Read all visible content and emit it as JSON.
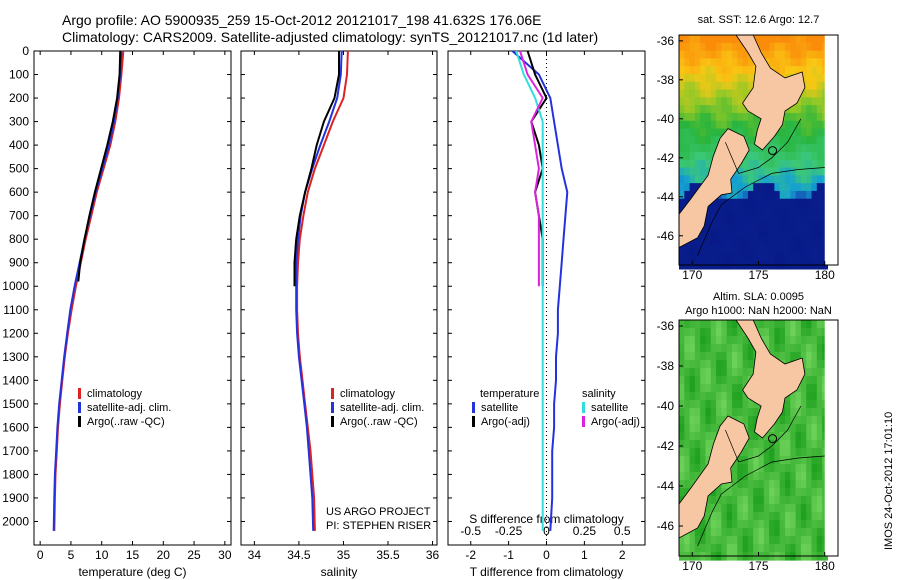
{
  "header": {
    "line1": "Argo profile: AO 5900935_259 15-Oct-2012 20121017_198 41.632S 176.06E",
    "line2": "Climatology: CARS2009. Satellite-adjusted climatology: synTS_20121017.nc (1d later)"
  },
  "colors": {
    "climatology": "#dd2222",
    "satellite": "#2233dd",
    "argo": "#000000",
    "sal_satellite": "#33dddd",
    "sal_argo": "#dd22dd",
    "land": "#f6c7a2"
  },
  "credits": {
    "line1": "US ARGO PROJECT",
    "line2": "PI: STEPHEN RISER"
  },
  "timestamp": "IMOS 24-Oct-2012 17:01:10",
  "chart_data": [
    {
      "type": "line",
      "id": "temperature",
      "xlabel": "temperature (deg C)",
      "ylabel": "",
      "xlim": [
        -1,
        31
      ],
      "ylim": [
        2100,
        0
      ],
      "xticks": [
        0,
        5,
        10,
        15,
        20,
        25,
        30
      ],
      "yticks": [
        0,
        100,
        200,
        300,
        400,
        500,
        600,
        700,
        800,
        900,
        1000,
        1100,
        1200,
        1300,
        1400,
        1500,
        1600,
        1700,
        1800,
        1900,
        2000
      ],
      "legend": {
        "placement": "lower-center",
        "entries": [
          "climatology",
          "satellite-adj. clim.",
          "Argo(..raw -QC)"
        ]
      },
      "series": [
        {
          "name": "climatology",
          "color": "#dd2222",
          "x": [
            13.5,
            13.2,
            12.8,
            12.2,
            11.4,
            10.3,
            9.2,
            8.3,
            7.4,
            6.6,
            5.8,
            5.1,
            4.5,
            4.0,
            3.6,
            3.2,
            2.9,
            2.7,
            2.5,
            2.4,
            2.3
          ],
          "y": [
            0,
            100,
            200,
            300,
            400,
            500,
            600,
            700,
            800,
            900,
            1000,
            1100,
            1200,
            1300,
            1400,
            1500,
            1600,
            1700,
            1800,
            1900,
            2040
          ]
        },
        {
          "name": "satellite-adj. clim.",
          "color": "#2233dd",
          "x": [
            13.2,
            13.0,
            12.6,
            12.0,
            11.2,
            10.1,
            9.0,
            8.1,
            7.2,
            6.4,
            5.6,
            4.9,
            4.4,
            3.9,
            3.5,
            3.1,
            2.8,
            2.6,
            2.4,
            2.3,
            2.2
          ],
          "y": [
            0,
            100,
            200,
            300,
            400,
            500,
            600,
            700,
            800,
            900,
            1000,
            1100,
            1200,
            1300,
            1400,
            1500,
            1600,
            1700,
            1800,
            1900,
            2040
          ]
        },
        {
          "name": "Argo(..raw -QC)",
          "color": "#000000",
          "x": [
            13.0,
            12.9,
            12.5,
            11.8,
            10.9,
            9.9,
            8.9,
            8.0,
            7.2,
            6.5,
            6.2
          ],
          "y": [
            0,
            100,
            200,
            300,
            400,
            500,
            600,
            700,
            800,
            900,
            980
          ]
        }
      ]
    },
    {
      "type": "line",
      "id": "salinity",
      "xlabel": "salinity",
      "ylabel": "",
      "xlim": [
        33.85,
        36.05
      ],
      "ylim": [
        2100,
        0
      ],
      "xticks": [
        34,
        34.5,
        35,
        35.5,
        36
      ],
      "legend": {
        "placement": "lower-center",
        "entries": [
          "climatology",
          "satellite-adj. clim.",
          "Argo(..raw -QC)"
        ]
      },
      "series": [
        {
          "name": "climatology",
          "color": "#dd2222",
          "x": [
            35.05,
            35.04,
            35.0,
            34.88,
            34.78,
            34.68,
            34.6,
            34.55,
            34.51,
            34.49,
            34.48,
            34.48,
            34.49,
            34.51,
            34.54,
            34.57,
            34.6,
            34.63,
            34.65,
            34.67,
            34.68
          ],
          "y": [
            0,
            100,
            200,
            300,
            400,
            500,
            600,
            700,
            800,
            900,
            1000,
            1100,
            1200,
            1300,
            1400,
            1500,
            1600,
            1700,
            1800,
            1900,
            2040
          ]
        },
        {
          "name": "satellite-adj. clim.",
          "color": "#2233dd",
          "x": [
            34.98,
            34.97,
            34.93,
            34.84,
            34.74,
            34.65,
            34.57,
            34.52,
            34.49,
            34.47,
            34.47,
            34.47,
            34.48,
            34.5,
            34.53,
            34.56,
            34.59,
            34.61,
            34.63,
            34.65,
            34.66
          ],
          "y": [
            0,
            100,
            200,
            300,
            400,
            500,
            600,
            700,
            800,
            900,
            1000,
            1100,
            1200,
            1300,
            1400,
            1500,
            1600,
            1700,
            1800,
            1900,
            2040
          ]
        },
        {
          "name": "Argo(..raw -QC)",
          "color": "#000000",
          "x": [
            34.95,
            34.95,
            34.9,
            34.78,
            34.7,
            34.64,
            34.57,
            34.51,
            34.47,
            34.45,
            34.45
          ],
          "y": [
            0,
            100,
            200,
            300,
            400,
            500,
            600,
            700,
            800,
            900,
            1000
          ]
        }
      ]
    },
    {
      "type": "line",
      "id": "difference",
      "xlabel": "T difference from climatology",
      "xlabel2": "S difference from climatology",
      "xlim": [
        -2.6,
        2.6
      ],
      "ylim": [
        2100,
        0
      ],
      "xticks": [
        -2,
        -1,
        0,
        1,
        2
      ],
      "xticks_top": [
        -0.5,
        -0.25,
        0,
        0.25,
        0.5
      ],
      "legend": {
        "placement": "lower-center",
        "titles": [
          "temperature",
          "salinity"
        ],
        "entries": [
          "satellite",
          "Argo(-adj)",
          "satellite",
          "Argo(-adj)"
        ]
      },
      "series": [
        {
          "name": "temperature satellite",
          "color": "#2233dd",
          "x": [
            -0.9,
            -0.2,
            0.1,
            0.2,
            0.3,
            0.4,
            0.55,
            0.5,
            0.45,
            0.4,
            0.35,
            0.3,
            0.3,
            0.25,
            0.25,
            0.2,
            0.2,
            0.15,
            0.15,
            0.15,
            0.1
          ],
          "y": [
            0,
            100,
            200,
            300,
            400,
            500,
            600,
            700,
            800,
            900,
            1000,
            1100,
            1200,
            1300,
            1400,
            1500,
            1600,
            1700,
            1800,
            1900,
            2040
          ]
        },
        {
          "name": "temperature Argo(-adj)",
          "color": "#000000",
          "x": [
            -0.5,
            -0.3,
            0.0,
            -0.4,
            -0.2,
            -0.1,
            -0.3,
            -0.2,
            -0.1,
            -0.1,
            -0.1
          ],
          "y": [
            0,
            100,
            200,
            300,
            400,
            500,
            600,
            700,
            800,
            900,
            1000
          ]
        },
        {
          "name": "salinity satellite",
          "color": "#33dddd",
          "x": [
            -0.8,
            -0.6,
            -0.3,
            -0.1,
            -0.1,
            -0.1,
            -0.1,
            -0.1,
            -0.1,
            -0.1,
            -0.1,
            -0.1,
            -0.1,
            -0.1,
            -0.1,
            -0.1,
            -0.1,
            -0.1,
            -0.1,
            -0.1,
            -0.1
          ],
          "y": [
            0,
            100,
            200,
            300,
            400,
            500,
            600,
            700,
            800,
            900,
            1000,
            1100,
            1200,
            1300,
            1400,
            1500,
            1600,
            1700,
            1800,
            1900,
            2040
          ]
        },
        {
          "name": "salinity Argo(-adj)",
          "color": "#dd22dd",
          "x": [
            -0.7,
            -0.5,
            -0.1,
            -0.4,
            -0.3,
            -0.2,
            -0.3,
            -0.2,
            -0.2,
            -0.2,
            -0.2
          ],
          "y": [
            0,
            100,
            200,
            300,
            400,
            500,
            600,
            700,
            800,
            900,
            1000
          ]
        }
      ]
    },
    {
      "type": "heatmap",
      "id": "sst_map",
      "title": "sat. SST: 12.6 Argo: 12.7",
      "xlim": [
        169,
        181
      ],
      "ylim": [
        -47.5,
        -35.7
      ],
      "xticks": [
        170,
        175,
        180
      ],
      "yticks": [
        -36,
        -38,
        -40,
        -42,
        -44,
        -46
      ]
    },
    {
      "type": "heatmap",
      "id": "sla_map",
      "title": "Altim. SLA: 0.0095",
      "subtitle": "Argo h1000: NaN h2000: NaN",
      "xlim": [
        169,
        181
      ],
      "ylim": [
        -47.5,
        -35.7
      ],
      "xticks": [
        170,
        175,
        180
      ],
      "yticks": [
        -36,
        -38,
        -40,
        -42,
        -44,
        -46
      ]
    }
  ]
}
